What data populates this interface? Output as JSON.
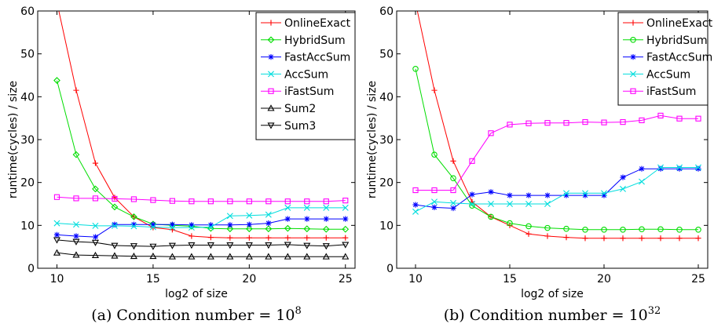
{
  "chart_data": [
    {
      "type": "line",
      "caption": "(a) Condition number = 10",
      "caption_exponent": "8",
      "xlabel": "log2 of size",
      "ylabel": "runtime(cycles) / size",
      "xlim": [
        9,
        25.5
      ],
      "ylim": [
        0,
        60
      ],
      "xticks": [
        10,
        15,
        20,
        25
      ],
      "yticks": [
        0,
        10,
        20,
        30,
        40,
        50,
        60
      ],
      "grid": false,
      "legend_position": "top-right",
      "x": [
        10,
        11,
        12,
        13,
        14,
        15,
        16,
        17,
        18,
        19,
        20,
        21,
        22,
        23,
        24,
        25
      ],
      "series": [
        {
          "name": "OnlineExact",
          "color": "#ff0000",
          "marker": "plus",
          "values": [
            62,
            41.5,
            24.5,
            16.5,
            12,
            9.5,
            9,
            7.5,
            7.2,
            7.1,
            7.1,
            7.1,
            7.1,
            7.1,
            7.1,
            7.1
          ]
        },
        {
          "name": "HybridSum",
          "color": "#00dd00",
          "marker": "diamond",
          "values": [
            43.8,
            26.5,
            18.5,
            14.3,
            12,
            10.3,
            10,
            9.8,
            9.3,
            9.2,
            9.2,
            9.2,
            9.3,
            9.2,
            9.1,
            9.1
          ]
        },
        {
          "name": "FastAccSum",
          "color": "#0000ff",
          "marker": "star",
          "values": [
            7.8,
            7.5,
            7.3,
            10.2,
            10.2,
            10.2,
            10.2,
            10.1,
            10.1,
            10.1,
            10.2,
            10.5,
            11.5,
            11.5,
            11.5,
            11.5
          ]
        },
        {
          "name": "AccSum",
          "color": "#00dddd",
          "marker": "x",
          "values": [
            10.5,
            10.2,
            9.9,
            9.9,
            9.8,
            9.6,
            9.5,
            9.5,
            9.6,
            12.2,
            12.3,
            12.5,
            14.1,
            14.1,
            14.1,
            14.1
          ]
        },
        {
          "name": "iFastSum",
          "color": "#ff00ff",
          "marker": "square",
          "values": [
            16.6,
            16.3,
            16.3,
            16.2,
            16.1,
            15.9,
            15.7,
            15.6,
            15.6,
            15.6,
            15.6,
            15.6,
            15.6,
            15.6,
            15.6,
            15.8
          ]
        },
        {
          "name": "Sum2",
          "color": "#000000",
          "marker": "triangle-up",
          "values": [
            3.6,
            3.1,
            3.0,
            2.9,
            2.8,
            2.8,
            2.7,
            2.7,
            2.7,
            2.7,
            2.7,
            2.7,
            2.7,
            2.7,
            2.7,
            2.7
          ]
        },
        {
          "name": "Sum3",
          "color": "#000000",
          "marker": "triangle-down",
          "values": [
            6.6,
            6.2,
            6.0,
            5.3,
            5.2,
            5.1,
            5.3,
            5.4,
            5.4,
            5.4,
            5.4,
            5.4,
            5.5,
            5.3,
            5.2,
            5.5
          ]
        }
      ]
    },
    {
      "type": "line",
      "caption": "(b) Condition number = 10",
      "caption_exponent": "32",
      "xlabel": "log2 of size",
      "ylabel": "runtime(cycles) / size",
      "xlim": [
        9,
        25.5
      ],
      "ylim": [
        0,
        60
      ],
      "xticks": [
        10,
        15,
        20,
        25
      ],
      "yticks": [
        0,
        10,
        20,
        30,
        40,
        50,
        60
      ],
      "grid": false,
      "legend_position": "top-right",
      "x": [
        10,
        11,
        12,
        13,
        14,
        15,
        16,
        17,
        18,
        19,
        20,
        21,
        22,
        23,
        24,
        25
      ],
      "series": [
        {
          "name": "OnlineExact",
          "color": "#ff0000",
          "marker": "plus",
          "values": [
            62,
            41.5,
            25,
            15.5,
            12,
            10,
            8,
            7.5,
            7.2,
            7.0,
            7.0,
            7.0,
            7.0,
            7.0,
            7.0,
            7.0
          ]
        },
        {
          "name": "HybridSum",
          "color": "#00dd00",
          "marker": "circle",
          "values": [
            46.5,
            26.5,
            21,
            14.6,
            12,
            10.5,
            9.8,
            9.4,
            9.2,
            9.0,
            9.0,
            9.0,
            9.1,
            9.1,
            9.0,
            9.0
          ]
        },
        {
          "name": "FastAccSum",
          "color": "#0000ff",
          "marker": "star",
          "values": [
            14.8,
            14.2,
            14.0,
            17.2,
            17.8,
            17.0,
            17.0,
            17.0,
            17.0,
            17.0,
            17.0,
            21.2,
            23.2,
            23.2,
            23.2,
            23.2
          ]
        },
        {
          "name": "AccSum",
          "color": "#00dddd",
          "marker": "x",
          "values": [
            13.2,
            15.5,
            15.2,
            15.0,
            15.0,
            15.0,
            15.0,
            15.0,
            17.5,
            17.5,
            17.5,
            18.5,
            20.2,
            23.5,
            23.5,
            23.5
          ]
        },
        {
          "name": "iFastSum",
          "color": "#ff00ff",
          "marker": "square",
          "values": [
            18.2,
            18.2,
            18.2,
            25.0,
            31.5,
            33.5,
            33.8,
            33.9,
            33.9,
            34.1,
            34.0,
            34.1,
            34.5,
            35.6,
            34.9,
            34.9
          ]
        }
      ]
    }
  ]
}
